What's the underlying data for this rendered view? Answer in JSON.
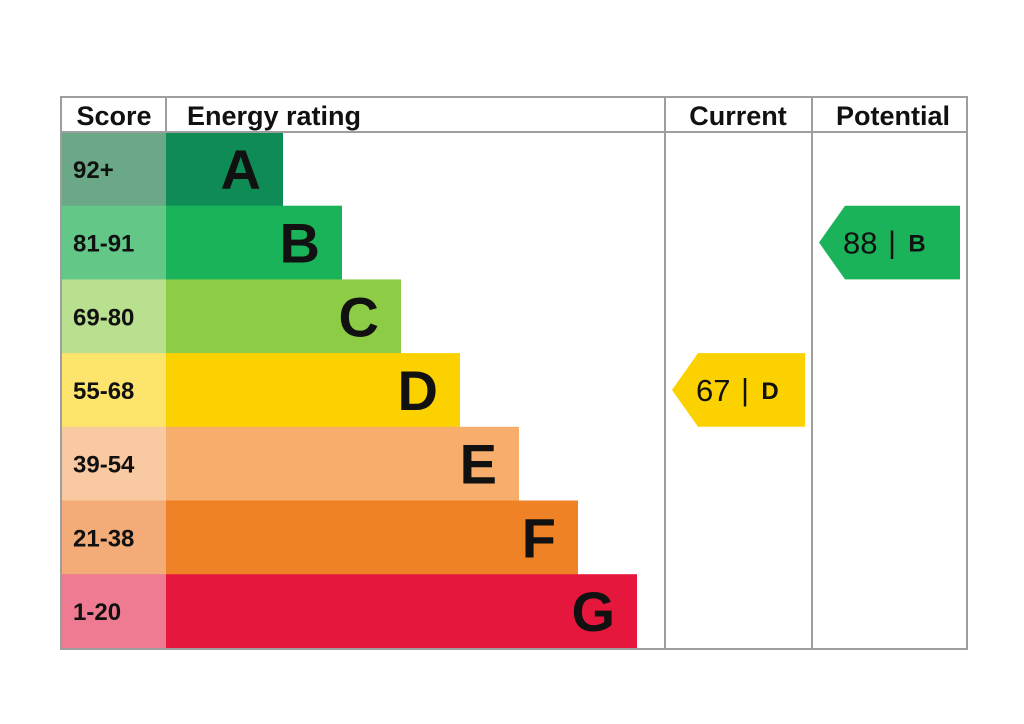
{
  "chart_data": {
    "type": "bar",
    "headers": {
      "score": "Score",
      "rating": "Energy rating",
      "current": "Current",
      "potential": "Potential"
    },
    "bands": [
      {
        "letter": "A",
        "range": "92+",
        "min": 92,
        "max": 100,
        "color": "#0f8c55",
        "score_bg": "#6aa887"
      },
      {
        "letter": "B",
        "range": "81-91",
        "min": 81,
        "max": 91,
        "color": "#1bb35a",
        "score_bg": "#62c787"
      },
      {
        "letter": "C",
        "range": "69-80",
        "min": 69,
        "max": 80,
        "color": "#8dcd45",
        "score_bg": "#b9e08e"
      },
      {
        "letter": "D",
        "range": "55-68",
        "min": 55,
        "max": 68,
        "color": "#fcd100",
        "score_bg": "#fde46c"
      },
      {
        "letter": "E",
        "range": "39-54",
        "min": 39,
        "max": 54,
        "color": "#f7ad6c",
        "score_bg": "#f9c9a2"
      },
      {
        "letter": "F",
        "range": "21-38",
        "min": 21,
        "max": 38,
        "color": "#ef8127",
        "score_bg": "#f3ac77"
      },
      {
        "letter": "G",
        "range": "1-20",
        "min": 1,
        "max": 20,
        "color": "#e5173d",
        "score_bg": "#ee7b91"
      }
    ],
    "current": {
      "value": 67,
      "letter": "D",
      "color": "#fcd100"
    },
    "potential": {
      "value": 88,
      "letter": "B",
      "color": "#1bb35a"
    }
  }
}
